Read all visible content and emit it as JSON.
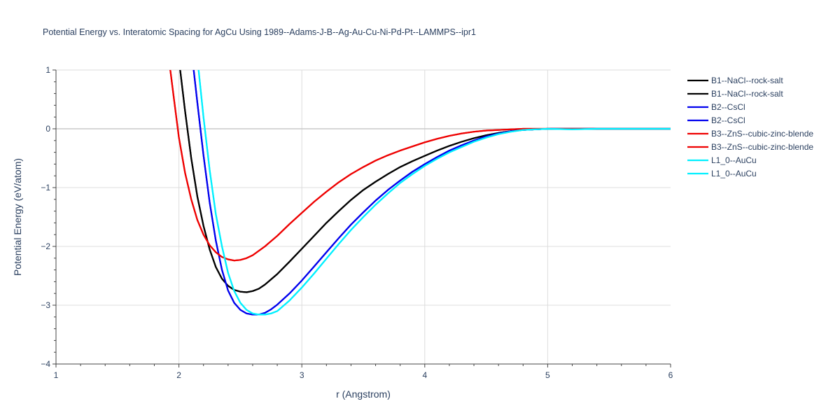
{
  "chart_data": {
    "type": "line",
    "title": "Potential Energy vs. Interatomic Spacing for AgCu Using 1989--Adams-J-B--Ag-Au-Cu-Ni-Pd-Pt--LAMMPS--ipr1",
    "xlabel": "r (Angstrom)",
    "ylabel": "Potential Energy (eV/atom)",
    "xlim": [
      1,
      6
    ],
    "ylim": [
      -4,
      1
    ],
    "x_ticks": [
      1,
      2,
      3,
      4,
      5,
      6
    ],
    "y_ticks": [
      1,
      0,
      -1,
      -2,
      -3,
      -4
    ],
    "x_tick_labels": [
      "1",
      "2",
      "3",
      "4",
      "5",
      "6"
    ],
    "y_tick_labels": [
      "1",
      "0",
      "−1",
      "−2",
      "−3",
      "−4"
    ],
    "grid": true,
    "legend_position": "top-right",
    "series": [
      {
        "name": "B1--NaCl--rock-salt",
        "color": "#000000",
        "x": [
          2.01,
          2.05,
          2.1,
          2.15,
          2.2,
          2.25,
          2.3,
          2.35,
          2.4,
          2.45,
          2.5,
          2.55,
          2.6,
          2.65,
          2.7,
          2.8,
          2.9,
          3.0,
          3.1,
          3.2,
          3.3,
          3.4,
          3.5,
          3.6,
          3.7,
          3.8,
          3.9,
          4.0,
          4.1,
          4.2,
          4.3,
          4.4,
          4.5,
          4.6,
          4.7,
          4.8,
          4.9,
          5.0,
          5.1,
          5.2,
          5.4,
          5.6,
          5.8,
          6.0
        ],
        "y": [
          1.0,
          0.3,
          -0.5,
          -1.15,
          -1.65,
          -2.05,
          -2.35,
          -2.55,
          -2.67,
          -2.74,
          -2.77,
          -2.78,
          -2.76,
          -2.72,
          -2.65,
          -2.47,
          -2.26,
          -2.04,
          -1.82,
          -1.6,
          -1.4,
          -1.21,
          -1.04,
          -0.9,
          -0.77,
          -0.65,
          -0.55,
          -0.46,
          -0.37,
          -0.29,
          -0.22,
          -0.16,
          -0.11,
          -0.07,
          -0.04,
          -0.02,
          -0.01,
          0.0,
          0.0,
          0.0,
          0.0,
          0.0,
          0.0,
          0.0
        ]
      },
      {
        "name": "B1--NaCl--rock-salt",
        "color": "#000000",
        "x": [
          2.01,
          2.05,
          2.1,
          2.15,
          2.2,
          2.25,
          2.3,
          2.35,
          2.4,
          2.45,
          2.5,
          2.55,
          2.6,
          2.65,
          2.7,
          2.8,
          2.9,
          3.0,
          3.1,
          3.2,
          3.3,
          3.4,
          3.5,
          3.6,
          3.7,
          3.8,
          3.9,
          4.0,
          4.1,
          4.2,
          4.3,
          4.4,
          4.5,
          4.6,
          4.7,
          4.8,
          4.9,
          5.0,
          5.1,
          5.2,
          5.4,
          5.6,
          5.8,
          6.0
        ],
        "y": [
          1.0,
          0.3,
          -0.5,
          -1.15,
          -1.65,
          -2.05,
          -2.35,
          -2.55,
          -2.67,
          -2.74,
          -2.77,
          -2.78,
          -2.76,
          -2.72,
          -2.65,
          -2.47,
          -2.26,
          -2.04,
          -1.82,
          -1.6,
          -1.4,
          -1.21,
          -1.04,
          -0.9,
          -0.77,
          -0.65,
          -0.55,
          -0.46,
          -0.37,
          -0.29,
          -0.22,
          -0.16,
          -0.11,
          -0.07,
          -0.04,
          -0.02,
          -0.01,
          0.0,
          0.0,
          0.0,
          0.0,
          0.0,
          0.0,
          0.0
        ]
      },
      {
        "name": "B2--CsCl",
        "color": "#0000ee",
        "x": [
          2.12,
          2.15,
          2.2,
          2.25,
          2.3,
          2.35,
          2.4,
          2.45,
          2.5,
          2.55,
          2.6,
          2.65,
          2.7,
          2.75,
          2.8,
          2.9,
          3.0,
          3.1,
          3.2,
          3.3,
          3.4,
          3.5,
          3.6,
          3.7,
          3.8,
          3.9,
          4.0,
          4.1,
          4.2,
          4.3,
          4.4,
          4.5,
          4.6,
          4.7,
          4.8,
          4.9,
          5.0,
          5.2,
          5.4,
          5.6,
          5.8,
          6.0
        ],
        "y": [
          1.0,
          0.45,
          -0.45,
          -1.25,
          -1.9,
          -2.4,
          -2.75,
          -2.96,
          -3.08,
          -3.14,
          -3.16,
          -3.16,
          -3.13,
          -3.07,
          -2.99,
          -2.8,
          -2.58,
          -2.34,
          -2.1,
          -1.86,
          -1.63,
          -1.42,
          -1.22,
          -1.04,
          -0.88,
          -0.73,
          -0.6,
          -0.48,
          -0.37,
          -0.28,
          -0.2,
          -0.13,
          -0.08,
          -0.04,
          -0.02,
          -0.01,
          0.0,
          0.0,
          0.0,
          0.0,
          0.0,
          0.0
        ]
      },
      {
        "name": "B2--CsCl",
        "color": "#0000ee",
        "x": [
          2.12,
          2.15,
          2.2,
          2.25,
          2.3,
          2.35,
          2.4,
          2.45,
          2.5,
          2.55,
          2.6,
          2.65,
          2.7,
          2.75,
          2.8,
          2.9,
          3.0,
          3.1,
          3.2,
          3.3,
          3.4,
          3.5,
          3.6,
          3.7,
          3.8,
          3.9,
          4.0,
          4.1,
          4.2,
          4.3,
          4.4,
          4.5,
          4.6,
          4.7,
          4.8,
          4.9,
          5.0,
          5.2,
          5.4,
          5.6,
          5.8,
          6.0
        ],
        "y": [
          1.0,
          0.45,
          -0.45,
          -1.25,
          -1.9,
          -2.4,
          -2.75,
          -2.96,
          -3.08,
          -3.14,
          -3.16,
          -3.16,
          -3.13,
          -3.07,
          -2.99,
          -2.8,
          -2.58,
          -2.34,
          -2.1,
          -1.86,
          -1.63,
          -1.42,
          -1.22,
          -1.04,
          -0.88,
          -0.73,
          -0.6,
          -0.48,
          -0.37,
          -0.28,
          -0.2,
          -0.13,
          -0.08,
          -0.04,
          -0.02,
          -0.01,
          0.0,
          0.0,
          0.0,
          0.0,
          0.0,
          0.0
        ]
      },
      {
        "name": "B3--ZnS--cubic-zinc-blende",
        "color": "#ee0000",
        "x": [
          1.93,
          1.96,
          2.0,
          2.05,
          2.1,
          2.15,
          2.2,
          2.25,
          2.3,
          2.35,
          2.4,
          2.45,
          2.5,
          2.55,
          2.6,
          2.7,
          2.8,
          2.9,
          3.0,
          3.1,
          3.2,
          3.3,
          3.4,
          3.5,
          3.6,
          3.7,
          3.8,
          3.9,
          4.0,
          4.1,
          4.2,
          4.3,
          4.4,
          4.5,
          4.6,
          4.7,
          4.8,
          4.9,
          5.0,
          5.2,
          5.4,
          5.6,
          5.8,
          6.0
        ],
        "y": [
          1.0,
          0.5,
          -0.15,
          -0.75,
          -1.2,
          -1.55,
          -1.8,
          -1.98,
          -2.1,
          -2.18,
          -2.22,
          -2.24,
          -2.23,
          -2.2,
          -2.15,
          -2.0,
          -1.82,
          -1.62,
          -1.43,
          -1.24,
          -1.07,
          -0.91,
          -0.77,
          -0.65,
          -0.54,
          -0.45,
          -0.37,
          -0.3,
          -0.23,
          -0.17,
          -0.12,
          -0.08,
          -0.05,
          -0.03,
          -0.02,
          -0.01,
          0.0,
          0.0,
          0.0,
          0.0,
          0.0,
          0.0,
          0.0,
          0.0
        ]
      },
      {
        "name": "B3--ZnS--cubic-zinc-blende",
        "color": "#ee0000",
        "x": [
          1.93,
          1.96,
          2.0,
          2.05,
          2.1,
          2.15,
          2.2,
          2.25,
          2.3,
          2.35,
          2.4,
          2.45,
          2.5,
          2.55,
          2.6,
          2.7,
          2.8,
          2.9,
          3.0,
          3.1,
          3.2,
          3.3,
          3.4,
          3.5,
          3.6,
          3.7,
          3.8,
          3.9,
          4.0,
          4.1,
          4.2,
          4.3,
          4.4,
          4.5,
          4.6,
          4.7,
          4.8,
          4.9,
          5.0,
          5.2,
          5.4,
          5.6,
          5.8,
          6.0
        ],
        "y": [
          1.0,
          0.5,
          -0.15,
          -0.75,
          -1.2,
          -1.55,
          -1.8,
          -1.98,
          -2.1,
          -2.18,
          -2.22,
          -2.24,
          -2.23,
          -2.2,
          -2.15,
          -2.0,
          -1.82,
          -1.62,
          -1.43,
          -1.24,
          -1.07,
          -0.91,
          -0.77,
          -0.65,
          -0.54,
          -0.45,
          -0.37,
          -0.3,
          -0.23,
          -0.17,
          -0.12,
          -0.08,
          -0.05,
          -0.03,
          -0.02,
          -0.01,
          0.0,
          0.0,
          0.0,
          0.0,
          0.0,
          0.0,
          0.0,
          0.0
        ]
      },
      {
        "name": "L1_0--AuCu",
        "color": "#00f0ff",
        "x": [
          2.16,
          2.2,
          2.25,
          2.3,
          2.35,
          2.4,
          2.45,
          2.5,
          2.55,
          2.6,
          2.65,
          2.7,
          2.75,
          2.8,
          2.9,
          3.0,
          3.1,
          3.2,
          3.3,
          3.4,
          3.5,
          3.6,
          3.7,
          3.8,
          3.9,
          4.0,
          4.1,
          4.2,
          4.3,
          4.4,
          4.5,
          4.6,
          4.7,
          4.8,
          4.9,
          5.0,
          5.2,
          5.4,
          5.6,
          5.8,
          6.0
        ],
        "y": [
          1.0,
          0.2,
          -0.7,
          -1.45,
          -2.0,
          -2.45,
          -2.76,
          -2.96,
          -3.08,
          -3.14,
          -3.16,
          -3.16,
          -3.14,
          -3.1,
          -2.92,
          -2.7,
          -2.46,
          -2.21,
          -1.96,
          -1.72,
          -1.5,
          -1.29,
          -1.1,
          -0.92,
          -0.77,
          -0.63,
          -0.51,
          -0.4,
          -0.31,
          -0.22,
          -0.15,
          -0.09,
          -0.05,
          -0.02,
          -0.01,
          0.0,
          -0.01,
          0.0,
          0.0,
          0.0,
          0.0
        ]
      },
      {
        "name": "L1_0--AuCu",
        "color": "#00f0ff",
        "x": [
          2.16,
          2.2,
          2.25,
          2.3,
          2.35,
          2.4,
          2.45,
          2.5,
          2.55,
          2.6,
          2.65,
          2.7,
          2.75,
          2.8,
          2.9,
          3.0,
          3.1,
          3.2,
          3.3,
          3.4,
          3.5,
          3.6,
          3.7,
          3.8,
          3.9,
          4.0,
          4.1,
          4.2,
          4.3,
          4.4,
          4.5,
          4.6,
          4.7,
          4.8,
          4.9,
          5.0,
          5.2,
          5.4,
          5.6,
          5.8,
          6.0
        ],
        "y": [
          1.0,
          0.2,
          -0.7,
          -1.45,
          -2.0,
          -2.45,
          -2.76,
          -2.96,
          -3.08,
          -3.14,
          -3.16,
          -3.16,
          -3.14,
          -3.1,
          -2.92,
          -2.7,
          -2.46,
          -2.21,
          -1.96,
          -1.72,
          -1.5,
          -1.29,
          -1.1,
          -0.92,
          -0.77,
          -0.63,
          -0.51,
          -0.4,
          -0.31,
          -0.22,
          -0.15,
          -0.09,
          -0.05,
          -0.02,
          -0.01,
          0.0,
          -0.01,
          0.0,
          0.0,
          0.0,
          0.0
        ]
      }
    ]
  }
}
